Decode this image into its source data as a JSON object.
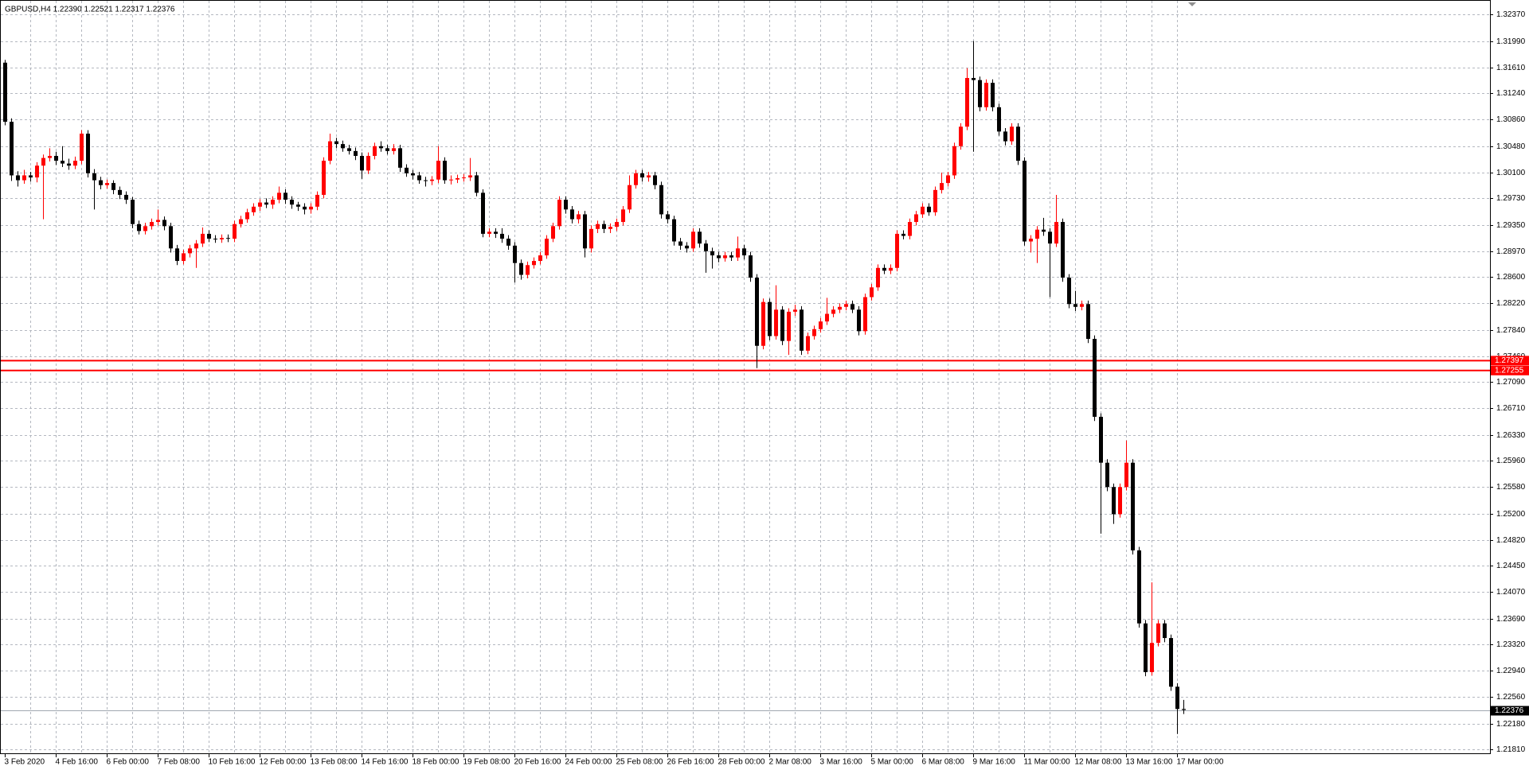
{
  "chart_data": {
    "type": "candlestick",
    "title": "GBPUSD,H4  1.22390 1.22521 1.22317 1.22376",
    "categories": [
      "3 Feb 2020",
      null,
      null,
      null,
      null,
      null,
      null,
      null,
      "4 Feb 16:00",
      null,
      null,
      null,
      null,
      null,
      null,
      null,
      "6 Feb 00:00",
      null,
      null,
      null,
      null,
      null,
      null,
      null,
      "7 Feb 08:00",
      null,
      null,
      null,
      null,
      null,
      null,
      null,
      "10 Feb 16:00",
      null,
      null,
      null,
      null,
      null,
      null,
      null,
      "12 Feb 00:00",
      null,
      null,
      null,
      null,
      null,
      null,
      null,
      "13 Feb 08:00",
      null,
      null,
      null,
      null,
      null,
      null,
      null,
      "14 Feb 16:00",
      null,
      null,
      null,
      null,
      null,
      null,
      null,
      "18 Feb 00:00",
      null,
      null,
      null,
      null,
      null,
      null,
      null,
      "19 Feb 08:00",
      null,
      null,
      null,
      null,
      null,
      null,
      null,
      "20 Feb 16:00",
      null,
      null,
      null,
      null,
      null,
      null,
      null,
      "24 Feb 00:00",
      null,
      null,
      null,
      null,
      null,
      null,
      null,
      "25 Feb 08:00",
      null,
      null,
      null,
      null,
      null,
      null,
      null,
      "26 Feb 16:00",
      null,
      null,
      null,
      null,
      null,
      null,
      null,
      "28 Feb 00:00",
      null,
      null,
      null,
      null,
      null,
      null,
      null,
      "2 Mar 08:00",
      null,
      null,
      null,
      null,
      null,
      null,
      null,
      "3 Mar 16:00",
      null,
      null,
      null,
      null,
      null,
      null,
      null,
      "5 Mar 00:00",
      null,
      null,
      null,
      null,
      null,
      null,
      null,
      "6 Mar 08:00",
      null,
      null,
      null,
      null,
      null,
      null,
      null,
      "9 Mar 16:00",
      null,
      null,
      null,
      null,
      null,
      null,
      null,
      "11 Mar 00:00",
      null,
      null,
      null,
      null,
      null,
      null,
      null,
      "12 Mar 08:00",
      null,
      null,
      null,
      null,
      null,
      null,
      null,
      "13 Mar 16:00",
      null,
      null,
      null,
      null,
      null,
      null,
      null,
      "17 Mar 00:00",
      null
    ],
    "open": [
      1.3168,
      1.3083,
      1.3006,
      1.2999,
      1.3006,
      1.3003,
      1.302,
      1.3031,
      1.3034,
      1.3027,
      1.3023,
      1.302,
      1.3027,
      1.3066,
      1.3009,
      1.2999,
      1.2992,
      1.2995,
      1.2985,
      1.2978,
      1.2971,
      1.2936,
      1.2926,
      1.2933,
      1.2939,
      1.2942,
      1.2933,
      1.2901,
      1.2883,
      1.2894,
      1.2901,
      1.2908,
      1.2922,
      1.2915,
      1.2914,
      1.2916,
      1.2915,
      1.2936,
      1.2943,
      1.2953,
      1.2961,
      1.2967,
      1.2964,
      1.2971,
      1.2981,
      1.2971,
      1.2964,
      1.2961,
      1.2957,
      1.2961,
      1.2978,
      1.3027,
      1.3055,
      1.3051,
      1.3045,
      1.3041,
      1.3034,
      1.3013,
      1.3034,
      1.3048,
      1.3045,
      1.3041,
      1.3045,
      1.3017,
      1.3009,
      1.3006,
      1.2999,
      1.2998,
      1.3,
      1.3027,
      1.2999,
      1.3,
      1.3002,
      1.3003,
      1.3006,
      1.2981,
      1.2922,
      1.2925,
      1.2922,
      1.2915,
      1.2905,
      1.288,
      1.2863,
      1.2877,
      1.2883,
      1.2891,
      1.2915,
      1.2933,
      1.2971,
      1.2957,
      1.2943,
      1.295,
      1.2901,
      1.2929,
      1.2936,
      1.2929,
      1.2932,
      1.2939,
      1.2957,
      1.2992,
      1.3009,
      1.3003,
      1.3006,
      1.2992,
      1.295,
      1.2943,
      1.2911,
      1.2905,
      1.2901,
      1.2925,
      1.2908,
      1.2897,
      1.2891,
      1.2887,
      1.2891,
      1.2888,
      1.2901,
      1.2891,
      1.2859,
      1.2761,
      1.2824,
      1.2775,
      1.2813,
      1.2768,
      1.281,
      1.2813,
      1.2754,
      1.2775,
      1.2785,
      1.2796,
      1.2807,
      1.2813,
      1.2817,
      1.2821,
      1.2813,
      1.2782,
      1.2831,
      1.2845,
      1.2873,
      1.2869,
      1.2873,
      1.2922,
      1.2919,
      1.2939,
      1.295,
      1.2961,
      1.2953,
      1.2985,
      1.2995,
      1.3006,
      1.3048,
      1.3076,
      1.3146,
      1.3143,
      1.3104,
      1.3139,
      1.3104,
      1.3069,
      1.3055,
      1.3076,
      1.3027,
      1.2911,
      1.2915,
      1.2928,
      1.2925,
      1.2908,
      1.2939,
      1.2859,
      1.2821,
      1.2817,
      1.2821,
      1.2771,
      1.2659,
      1.2593,
      1.2558,
      1.2519,
      1.2558,
      1.2593,
      1.2467,
      1.2362,
      1.2292,
      1.2334,
      1.2362,
      1.2341,
      1.2271,
      1.2239
    ],
    "high": [
      1.3172,
      1.3088,
      1.3012,
      1.3014,
      1.3011,
      1.3025,
      1.3036,
      1.3045,
      1.304,
      1.3048,
      1.303,
      1.3033,
      1.3071,
      1.3071,
      1.3015,
      1.3004,
      1.3,
      1.2999,
      1.299,
      1.2983,
      1.2975,
      1.2941,
      1.2938,
      1.2944,
      1.2957,
      1.2947,
      1.2938,
      1.2906,
      1.2899,
      1.2906,
      1.2913,
      1.2931,
      1.2927,
      1.292,
      1.2921,
      1.2921,
      1.2941,
      1.2948,
      1.2958,
      1.2966,
      1.2972,
      1.2973,
      1.2976,
      1.299,
      1.2986,
      1.2976,
      1.2968,
      1.2966,
      1.2966,
      1.2983,
      1.3032,
      1.3066,
      1.306,
      1.3056,
      1.305,
      1.3046,
      1.3039,
      1.3039,
      1.3053,
      1.3055,
      1.305,
      1.3051,
      1.305,
      1.3022,
      1.3014,
      1.3011,
      1.3004,
      1.3005,
      1.3048,
      1.3032,
      1.3006,
      1.3007,
      1.3008,
      1.3031,
      1.3011,
      1.2986,
      1.293,
      1.293,
      1.293,
      1.292,
      1.291,
      1.2885,
      1.2882,
      1.2888,
      1.2896,
      1.292,
      1.2938,
      1.2976,
      1.2976,
      1.2962,
      1.2955,
      1.2955,
      1.2934,
      1.2941,
      1.2941,
      1.2937,
      1.2944,
      1.2962,
      1.3006,
      1.3014,
      1.3014,
      1.3011,
      1.3011,
      1.2997,
      1.2955,
      1.2948,
      1.2916,
      1.291,
      1.293,
      1.293,
      1.2913,
      1.2902,
      1.2896,
      1.2896,
      1.2896,
      1.2918,
      1.2906,
      1.2896,
      1.2864,
      1.2829,
      1.2829,
      1.2848,
      1.2818,
      1.2815,
      1.282,
      1.2818,
      1.278,
      1.279,
      1.2801,
      1.283,
      1.2818,
      1.2822,
      1.2826,
      1.2826,
      1.2818,
      1.2836,
      1.285,
      1.2878,
      1.2878,
      1.2878,
      1.2927,
      1.2927,
      1.2944,
      1.2955,
      1.2966,
      1.2966,
      1.299,
      1.301,
      1.3011,
      1.3053,
      1.3081,
      1.316,
      1.3199,
      1.3148,
      1.3144,
      1.3144,
      1.3109,
      1.3074,
      1.3081,
      1.3081,
      1.3032,
      1.292,
      1.2933,
      1.2945,
      1.293,
      1.2978,
      1.2944,
      1.2864,
      1.284,
      1.2826,
      1.2826,
      1.2776,
      1.2664,
      1.2598,
      1.2563,
      1.2563,
      1.2625,
      1.2598,
      1.2472,
      1.2367,
      1.2421,
      1.2367,
      1.2367,
      1.2346,
      1.2276,
      1.22521
    ],
    "low": [
      1.3078,
      1.2998,
      1.299,
      1.2994,
      1.2997,
      1.2996,
      1.2943,
      1.3026,
      1.3021,
      1.3018,
      1.3014,
      1.3015,
      1.3022,
      1.3003,
      1.2957,
      1.2986,
      1.2987,
      1.2979,
      1.2972,
      1.2965,
      1.293,
      1.2921,
      1.2921,
      1.2928,
      1.2934,
      1.2927,
      1.2895,
      1.2877,
      1.2878,
      1.2888,
      1.2873,
      1.2903,
      1.291,
      1.2909,
      1.2909,
      1.291,
      1.291,
      1.2931,
      1.2938,
      1.2948,
      1.2955,
      1.2959,
      1.2958,
      1.2966,
      1.2965,
      1.2958,
      1.2955,
      1.295,
      1.2951,
      1.2956,
      1.2973,
      1.3022,
      1.3045,
      1.304,
      1.3036,
      1.3028,
      1.3001,
      1.3008,
      1.3029,
      1.304,
      1.3036,
      1.3036,
      1.3011,
      1.3004,
      1.3,
      1.2994,
      1.299,
      1.2992,
      1.2995,
      1.2994,
      1.2993,
      1.2995,
      1.2997,
      1.2998,
      1.2976,
      1.2917,
      1.2917,
      1.2916,
      1.2909,
      1.2899,
      1.2852,
      1.2856,
      1.2858,
      1.2872,
      1.2878,
      1.2886,
      1.291,
      1.2928,
      1.2951,
      1.2937,
      1.2937,
      1.2888,
      1.2895,
      1.2923,
      1.2923,
      1.2923,
      1.2926,
      1.2934,
      1.2952,
      1.2987,
      1.2997,
      1.2997,
      1.2986,
      1.2944,
      1.2937,
      1.2905,
      1.2899,
      1.2895,
      1.2896,
      1.2902,
      1.2866,
      1.2872,
      1.2881,
      1.2882,
      1.2883,
      1.2883,
      1.2885,
      1.2853,
      1.2729,
      1.2756,
      1.2769,
      1.277,
      1.2762,
      1.2748,
      1.2804,
      1.2748,
      1.2749,
      1.277,
      1.278,
      1.2791,
      1.2802,
      1.2808,
      1.2812,
      1.2808,
      1.2776,
      1.2777,
      1.2826,
      1.284,
      1.2864,
      1.2864,
      1.2868,
      1.2914,
      1.2914,
      1.2934,
      1.2945,
      1.2948,
      1.2948,
      1.298,
      1.299,
      1.3001,
      1.3043,
      1.3071,
      1.304,
      1.3098,
      1.3099,
      1.3098,
      1.3063,
      1.3049,
      1.305,
      1.3021,
      1.2905,
      1.2895,
      1.288,
      1.2919,
      1.2831,
      1.2903,
      1.2853,
      1.2815,
      1.2811,
      1.2812,
      1.2765,
      1.2653,
      1.2491,
      1.2552,
      1.2505,
      1.2514,
      1.2553,
      1.2461,
      1.2356,
      1.2286,
      1.2287,
      1.2329,
      1.2335,
      1.2265,
      1.2203,
      1.22317
    ],
    "close": [
      1.3083,
      1.3006,
      1.2999,
      1.3006,
      1.3003,
      1.302,
      1.3031,
      1.3034,
      1.3027,
      1.3023,
      1.302,
      1.3027,
      1.3066,
      1.3009,
      1.2999,
      1.2992,
      1.2995,
      1.2985,
      1.2978,
      1.2971,
      1.2936,
      1.2926,
      1.2933,
      1.2939,
      1.2942,
      1.2933,
      1.2901,
      1.2883,
      1.2894,
      1.2901,
      1.2908,
      1.2922,
      1.2915,
      1.2914,
      1.2916,
      1.2915,
      1.2936,
      1.2943,
      1.2953,
      1.2961,
      1.2967,
      1.2964,
      1.2971,
      1.2981,
      1.2971,
      1.2964,
      1.2961,
      1.2957,
      1.2961,
      1.2978,
      1.3027,
      1.3055,
      1.3051,
      1.3045,
      1.3041,
      1.3034,
      1.3013,
      1.3034,
      1.3048,
      1.3045,
      1.3041,
      1.3045,
      1.3017,
      1.3009,
      1.3006,
      1.2999,
      1.2998,
      1.3,
      1.3027,
      1.2999,
      1.3,
      1.3002,
      1.3003,
      1.3006,
      1.2981,
      1.2922,
      1.2925,
      1.2922,
      1.2915,
      1.2905,
      1.288,
      1.2863,
      1.2877,
      1.2883,
      1.2891,
      1.2915,
      1.2933,
      1.2971,
      1.2957,
      1.2943,
      1.295,
      1.2901,
      1.2929,
      1.2936,
      1.2929,
      1.2932,
      1.2939,
      1.2957,
      1.2992,
      1.3009,
      1.3003,
      1.3006,
      1.2992,
      1.295,
      1.2943,
      1.2911,
      1.2905,
      1.2901,
      1.2925,
      1.2908,
      1.2897,
      1.2891,
      1.2887,
      1.2891,
      1.2888,
      1.2901,
      1.2891,
      1.2859,
      1.2761,
      1.2824,
      1.2775,
      1.2813,
      1.2768,
      1.281,
      1.2813,
      1.2754,
      1.2775,
      1.2785,
      1.2796,
      1.2807,
      1.2813,
      1.2817,
      1.2821,
      1.2813,
      1.2782,
      1.2831,
      1.2845,
      1.2873,
      1.2869,
      1.2873,
      1.2922,
      1.2919,
      1.2939,
      1.295,
      1.2961,
      1.2953,
      1.2985,
      1.2995,
      1.3006,
      1.3048,
      1.3076,
      1.3146,
      1.3143,
      1.3104,
      1.3139,
      1.3104,
      1.3069,
      1.3055,
      1.3076,
      1.3027,
      1.2911,
      1.2915,
      1.2928,
      1.2925,
      1.2908,
      1.2939,
      1.2859,
      1.2821,
      1.2817,
      1.2821,
      1.2771,
      1.2659,
      1.2593,
      1.2558,
      1.2519,
      1.2558,
      1.2593,
      1.2467,
      1.2362,
      1.2292,
      1.2334,
      1.2362,
      1.2341,
      1.2271,
      1.2239,
      1.22376
    ],
    "up_color": "#ff0000",
    "down_color": "#000000",
    "ylim": [
      1.21753,
      1.32535
    ],
    "yticks": [
      {
        "value": 1.3237,
        "label": "1.32370"
      },
      {
        "value": 1.3199,
        "label": "1.31990"
      },
      {
        "value": 1.3161,
        "label": "1.31610"
      },
      {
        "value": 1.3124,
        "label": "1.31240"
      },
      {
        "value": 1.3086,
        "label": "1.30860"
      },
      {
        "value": 1.3048,
        "label": "1.30480"
      },
      {
        "value": 1.301,
        "label": "1.30100"
      },
      {
        "value": 1.2973,
        "label": "1.29730"
      },
      {
        "value": 1.2935,
        "label": "1.29350"
      },
      {
        "value": 1.2897,
        "label": "1.28970"
      },
      {
        "value": 1.286,
        "label": "1.28600"
      },
      {
        "value": 1.2822,
        "label": "1.28220"
      },
      {
        "value": 1.2784,
        "label": "1.27840"
      },
      {
        "value": 1.2746,
        "label": "1.27460"
      },
      {
        "value": 1.2709,
        "label": "1.27090"
      },
      {
        "value": 1.2671,
        "label": "1.26710"
      },
      {
        "value": 1.2633,
        "label": "1.26330"
      },
      {
        "value": 1.2596,
        "label": "1.25960"
      },
      {
        "value": 1.2558,
        "label": "1.25580"
      },
      {
        "value": 1.252,
        "label": "1.25200"
      },
      {
        "value": 1.2482,
        "label": "1.24820"
      },
      {
        "value": 1.2445,
        "label": "1.24450"
      },
      {
        "value": 1.2407,
        "label": "1.24070"
      },
      {
        "value": 1.2369,
        "label": "1.23690"
      },
      {
        "value": 1.2332,
        "label": "1.23320"
      },
      {
        "value": 1.2294,
        "label": "1.22940"
      },
      {
        "value": 1.2256,
        "label": "1.22560"
      },
      {
        "value": 1.2218,
        "label": "1.22180"
      },
      {
        "value": 1.2181,
        "label": "1.21810"
      }
    ],
    "grid": true,
    "hlines": [
      {
        "value": 1.27397,
        "color": "#ff0000"
      },
      {
        "value": 1.27255,
        "color": "#ff0000"
      }
    ],
    "last_price": 1.22376
  }
}
